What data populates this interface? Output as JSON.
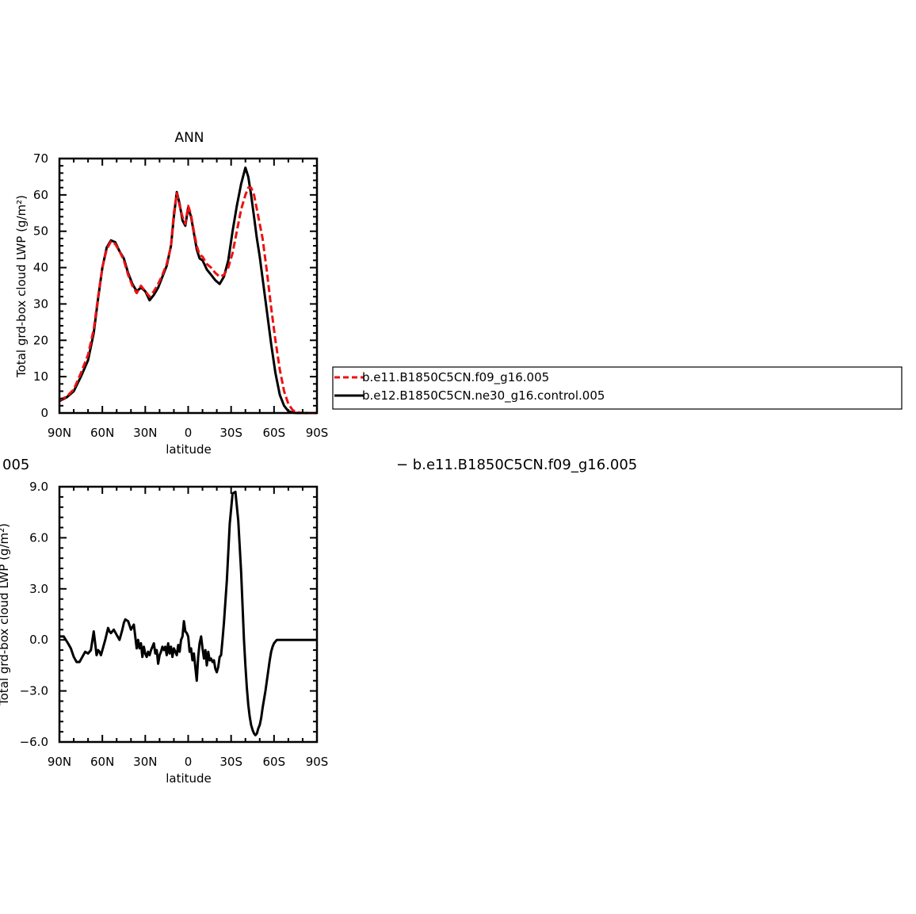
{
  "chart_data": [
    {
      "type": "line",
      "title": "ANN",
      "xlabel": "latitude",
      "ylabel": "Total grd-box cloud LWP (g/m²)",
      "xlim": [
        90,
        -90
      ],
      "ylim": [
        0,
        70
      ],
      "x_ticks": [
        90,
        60,
        30,
        0,
        -30,
        -60,
        -90
      ],
      "x_tick_labels": [
        "90N",
        "60N",
        "30N",
        "0",
        "30S",
        "60S",
        "90S"
      ],
      "y_ticks": [
        0,
        10,
        20,
        30,
        40,
        50,
        60,
        70
      ],
      "y_tick_labels": [
        "0",
        "10",
        "20",
        "30",
        "40",
        "50",
        "60",
        "70"
      ],
      "legend": "right",
      "legend_entries": [
        "b.e11.B1850C5CN.f09_g16.005",
        "b.e12.B1850C5CN.ne30_g16.control.005"
      ],
      "series": [
        {
          "name": "b.e11.B1850C5CN.f09_g16.005",
          "color": "#ee1111",
          "dash": "dashed",
          "x": [
            90,
            85,
            80,
            75,
            70,
            66,
            63,
            60,
            57,
            54,
            51,
            48,
            45,
            42,
            39,
            36,
            33,
            30,
            27,
            24,
            21,
            18,
            15,
            12,
            10,
            8,
            6,
            4,
            2,
            0,
            -2,
            -4,
            -6,
            -8,
            -10,
            -13,
            -16,
            -19,
            -22,
            -25,
            -28,
            -31,
            -34,
            -37,
            -40,
            -42,
            -44,
            -46,
            -48,
            -50,
            -52,
            -55,
            -58,
            -61,
            -64,
            -67,
            -70,
            -73,
            -76,
            -80,
            -85,
            -90
          ],
          "values": [
            3.5,
            4.5,
            6.5,
            11,
            16,
            23,
            32,
            40,
            45,
            47.2,
            46.5,
            44.5,
            42,
            38,
            35,
            33,
            35,
            33.5,
            32,
            33.5,
            35.5,
            38,
            41,
            46,
            55,
            60.5,
            57,
            54,
            52,
            57,
            54.5,
            50,
            46,
            43.5,
            43,
            41,
            40,
            38.5,
            37.5,
            38,
            40,
            44,
            50,
            56,
            60,
            62,
            62,
            60,
            56,
            52,
            48,
            39,
            29,
            20,
            12,
            6,
            2.5,
            0.8,
            0.2,
            0,
            0,
            0
          ]
        },
        {
          "name": "b.e12.B1850C5CN.ne30_g16.control.005",
          "color": "#000000",
          "dash": "solid",
          "x": [
            90,
            85,
            80,
            75,
            70,
            66,
            63,
            60,
            57,
            54,
            51,
            48,
            45,
            42,
            39,
            36,
            33,
            30,
            27,
            24,
            21,
            18,
            15,
            12,
            10,
            8,
            6,
            4,
            2,
            0,
            -2,
            -4,
            -6,
            -8,
            -10,
            -13,
            -16,
            -19,
            -22,
            -25,
            -28,
            -31,
            -34,
            -37,
            -40,
            -42,
            -44,
            -46,
            -48,
            -50,
            -52,
            -55,
            -58,
            -61,
            -64,
            -67,
            -70,
            -73,
            -76,
            -80,
            -85,
            -90
          ],
          "values": [
            3.3,
            4.3,
            6,
            10,
            14.5,
            22,
            31.5,
            40,
            45.5,
            47.5,
            47,
            44.5,
            42.5,
            38.5,
            35.5,
            33.5,
            34.5,
            33.5,
            31,
            32.5,
            34.5,
            37.5,
            40.5,
            46,
            54,
            60.8,
            57.5,
            53,
            51.5,
            56.5,
            54,
            49.5,
            45,
            42.5,
            42,
            39.5,
            38,
            36.5,
            35.5,
            37.5,
            42,
            50,
            57,
            63,
            67.5,
            65,
            60,
            54,
            48,
            43,
            37,
            28,
            19,
            11,
            5,
            2,
            0.5,
            0.1,
            0,
            0,
            0,
            0
          ]
        }
      ]
    },
    {
      "type": "line",
      "title": "",
      "xlabel": "latitude",
      "ylabel": "Total grd-box cloud LWP (g/m²)",
      "xlim": [
        90,
        -90
      ],
      "ylim": [
        -6,
        9
      ],
      "x_ticks": [
        90,
        60,
        30,
        0,
        -30,
        -60,
        -90
      ],
      "x_tick_labels": [
        "90N",
        "60N",
        "30N",
        "0",
        "30S",
        "60S",
        "90S"
      ],
      "y_ticks": [
        -6,
        -3,
        0,
        3,
        6,
        9
      ],
      "y_tick_labels": [
        "−6.0",
        "−3.0",
        "0.0",
        "3.0",
        "6.0",
        "9.0"
      ],
      "series": [
        {
          "color": "#000000",
          "x": [
            90,
            87,
            84,
            82,
            80,
            78,
            76,
            74,
            72,
            70,
            68,
            66,
            64,
            63,
            62,
            61,
            60,
            58,
            56,
            55,
            54,
            52,
            50,
            48,
            46,
            45,
            44,
            42,
            40,
            38,
            36,
            35,
            34,
            33,
            32,
            31,
            30,
            29,
            28,
            27,
            26,
            24,
            23,
            22,
            21,
            20,
            19,
            18,
            17,
            16,
            15,
            14,
            13,
            12,
            11,
            10,
            8,
            7,
            6,
            5,
            4,
            3,
            2,
            1,
            0,
            -1,
            -2,
            -3,
            -4,
            -5,
            -6,
            -7,
            -8,
            -9,
            -10,
            -11,
            -12,
            -13,
            -14,
            -15,
            -16,
            -17,
            -18,
            -19,
            -20,
            -21,
            -22,
            -23,
            -24,
            -25,
            -27,
            -29,
            -31,
            -33,
            -35,
            -37,
            -38,
            -39,
            -40,
            -41,
            -42,
            -43,
            -44,
            -45,
            -46,
            -47,
            -48,
            -49,
            -50,
            -51,
            -52,
            -53,
            -54,
            -55,
            -56,
            -57,
            -58,
            -59,
            -60,
            -61,
            -62,
            -63,
            -64,
            -66,
            -68,
            -70,
            -72,
            -74,
            -76,
            -80,
            -85,
            -90
          ],
          "values": [
            0.2,
            0.2,
            -0.2,
            -0.5,
            -1.0,
            -1.3,
            -1.3,
            -1.0,
            -0.7,
            -0.8,
            -0.6,
            0.5,
            -0.9,
            -0.6,
            -0.7,
            -0.9,
            -0.6,
            0.0,
            0.7,
            0.5,
            0.4,
            0.6,
            0.3,
            0.0,
            0.6,
            1.0,
            1.2,
            1.1,
            0.6,
            0.9,
            -0.5,
            0.0,
            -0.5,
            -0.2,
            -1.0,
            -0.4,
            -0.8,
            -1.0,
            -0.7,
            -0.9,
            -0.6,
            -0.2,
            -0.8,
            -0.6,
            -1.4,
            -0.9,
            -0.7,
            -0.4,
            -0.6,
            -0.4,
            -0.9,
            -0.2,
            -0.8,
            -0.4,
            -1.0,
            -0.5,
            -0.9,
            -0.3,
            -0.7,
            0.0,
            0.2,
            1.1,
            0.5,
            0.4,
            0.2,
            -0.7,
            -0.5,
            -1.2,
            -0.8,
            -1.6,
            -2.4,
            -1.0,
            -0.2,
            0.2,
            -0.5,
            -1.1,
            -0.6,
            -1.5,
            -0.7,
            -1.2,
            -1.1,
            -1.3,
            -1.2,
            -1.7,
            -1.9,
            -1.6,
            -1.0,
            -0.9,
            0.0,
            1.0,
            3.5,
            6.8,
            8.6,
            8.7,
            7.0,
            4.0,
            2.0,
            0.0,
            -1.5,
            -2.8,
            -3.8,
            -4.5,
            -5.0,
            -5.3,
            -5.5,
            -5.6,
            -5.5,
            -5.2,
            -5.0,
            -4.6,
            -4.0,
            -3.5,
            -3.0,
            -2.4,
            -1.8,
            -1.2,
            -0.7,
            -0.4,
            -0.2,
            -0.1,
            0.0,
            0.0,
            0.0,
            0.0,
            0.0,
            0.0,
            0.0,
            0.0,
            0.0,
            0.0,
            0.0,
            0.0
          ]
        }
      ]
    }
  ],
  "lower_panel": {
    "left_label": "005",
    "right_label": "− b.e11.B1850C5CN.f09_g16.005"
  }
}
